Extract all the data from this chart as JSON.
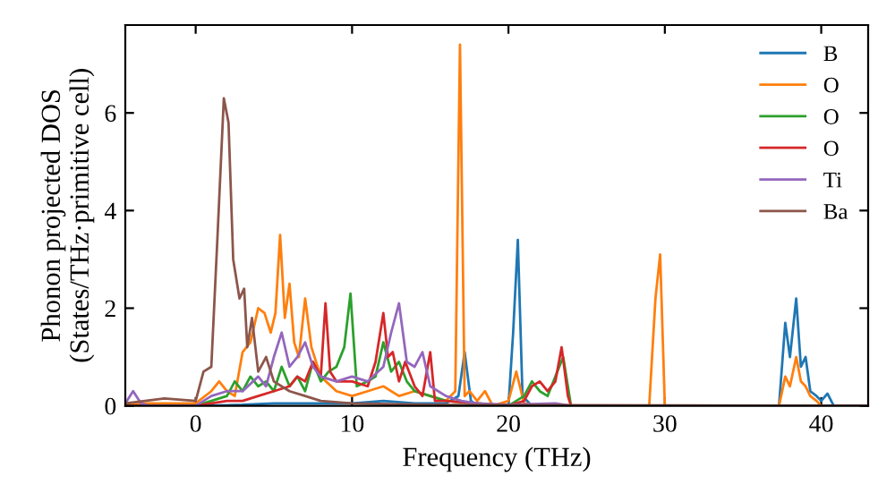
{
  "chart_data": {
    "type": "line",
    "xlabel": "Frequency (THz)",
    "ylabel": "Phonon projected DOS\n(States/THz·primitive cell)",
    "xlim": [
      -4.5,
      43
    ],
    "ylim": [
      0,
      7.8
    ],
    "xticks": [
      0,
      10,
      20,
      30,
      40
    ],
    "yticks": [
      0,
      2,
      4,
      6
    ],
    "grid": false,
    "legend": "top right",
    "line_style": "solid",
    "marker": "none",
    "series": [
      {
        "name": "B",
        "color": "#1f77b4",
        "x": [
          -4.5,
          0,
          3,
          5,
          8,
          10,
          12,
          14,
          16,
          16.8,
          17.2,
          17.6,
          18,
          20,
          20.3,
          20.6,
          20.9,
          21.5,
          30,
          37.3,
          37.7,
          38,
          38.4,
          38.7,
          39,
          39.3,
          39.7,
          40,
          40.4,
          40.8,
          43
        ],
        "values": [
          0,
          0,
          0.02,
          0.05,
          0.05,
          0.05,
          0.1,
          0.05,
          0.05,
          0.2,
          1.1,
          0.1,
          0.02,
          0,
          1.5,
          3.4,
          0.2,
          0,
          0,
          0,
          1.7,
          1.0,
          2.2,
          0.8,
          1.0,
          0.3,
          0.2,
          0.1,
          0.25,
          0,
          0
        ]
      },
      {
        "name": "O",
        "color": "#ff7f0e",
        "x": [
          -4.5,
          -2,
          0,
          1,
          1.5,
          2,
          2.5,
          3,
          3.5,
          4,
          4.4,
          4.8,
          5.1,
          5.4,
          5.7,
          6,
          6.3,
          6.6,
          7,
          7.4,
          8,
          9,
          10,
          11,
          12,
          13,
          14,
          15,
          16,
          16.6,
          16.9,
          17.2,
          17.5,
          18,
          18.5,
          19,
          20,
          20.5,
          21,
          22,
          25,
          29,
          29.4,
          29.7,
          30,
          37.3,
          37.7,
          38,
          38.4,
          38.7,
          39,
          39.3,
          39.7,
          40,
          43
        ],
        "values": [
          0.05,
          0.05,
          0.05,
          0.3,
          0.5,
          0.3,
          0.2,
          1.1,
          1.3,
          2.0,
          1.9,
          1.5,
          1.9,
          3.5,
          1.8,
          2.5,
          1.3,
          1.0,
          2.2,
          1.2,
          0.6,
          0.3,
          0.2,
          0.3,
          0.4,
          0.2,
          0.3,
          0.2,
          0.1,
          0.3,
          7.4,
          0.2,
          0.3,
          0.1,
          0.3,
          0,
          0.1,
          0.7,
          0.05,
          0,
          0,
          0,
          2.2,
          3.1,
          0,
          0,
          0.6,
          0.4,
          1.0,
          0.5,
          0.4,
          0.2,
          0.1,
          0,
          0
        ]
      },
      {
        "name": "O",
        "color": "#2ca02c",
        "x": [
          -4.5,
          0,
          1,
          2,
          2.5,
          3,
          3.5,
          4,
          4.5,
          5,
          5.5,
          6,
          6.5,
          7,
          7.5,
          8,
          8.5,
          9,
          9.5,
          9.9,
          10.3,
          11,
          11.5,
          12,
          12.5,
          13,
          13.5,
          14,
          15,
          16,
          18,
          20,
          21,
          21.5,
          22,
          22.5,
          23,
          23.5,
          24,
          43
        ],
        "values": [
          0,
          0,
          0.1,
          0.2,
          0.5,
          0.3,
          0.6,
          0.4,
          0.5,
          0.3,
          0.8,
          0.4,
          0.6,
          0.3,
          0.9,
          0.5,
          0.7,
          0.8,
          1.2,
          2.3,
          0.4,
          0.5,
          0.6,
          1.3,
          0.7,
          0.9,
          0.5,
          0.3,
          0.2,
          0.1,
          0.05,
          0,
          0.2,
          0.5,
          0.3,
          0.2,
          0.6,
          1.0,
          0,
          0
        ]
      },
      {
        "name": "O",
        "color": "#d62728",
        "x": [
          -4.5,
          0,
          2,
          3,
          4,
          5,
          6,
          6.5,
          7,
          7.5,
          8,
          8.3,
          8.6,
          9,
          10,
          11,
          11.5,
          12,
          12.3,
          12.6,
          13,
          13.4,
          14,
          14.5,
          15,
          15.3,
          16,
          18,
          20,
          21,
          21.5,
          22,
          22.5,
          23,
          23.4,
          23.8,
          24,
          43
        ],
        "values": [
          0,
          0,
          0.1,
          0.1,
          0.2,
          0.3,
          0.4,
          0.6,
          0.5,
          0.9,
          0.6,
          2.1,
          0.7,
          0.5,
          0.5,
          0.4,
          0.9,
          1.9,
          1.0,
          1.1,
          0.5,
          0.9,
          0.4,
          0.2,
          1.1,
          0.1,
          0.1,
          0.05,
          0,
          0.1,
          0.4,
          0.5,
          0.3,
          0.5,
          1.2,
          0.2,
          0,
          0
        ]
      },
      {
        "name": "Ti",
        "color": "#9467bd",
        "x": [
          -4.5,
          -4,
          -3.5,
          -3,
          0,
          1,
          2,
          3,
          4,
          4.5,
          5,
          5.5,
          6,
          6.5,
          7,
          7.5,
          8,
          9,
          10,
          11,
          12,
          12.5,
          13,
          13.5,
          14,
          14.5,
          15,
          16,
          17,
          18,
          20,
          23,
          24,
          43
        ],
        "values": [
          0.05,
          0.3,
          0.05,
          0,
          0,
          0.2,
          0.3,
          0.3,
          0.6,
          0.4,
          1.0,
          1.5,
          0.8,
          1.0,
          1.3,
          0.8,
          0.6,
          0.5,
          0.6,
          0.5,
          0.8,
          1.5,
          2.1,
          0.9,
          0.8,
          1.1,
          0.4,
          0.2,
          0.1,
          0.05,
          0.02,
          0.05,
          0,
          0
        ]
      },
      {
        "name": "Ba",
        "color": "#8c564b",
        "x": [
          -4.5,
          -2,
          0,
          0.5,
          1,
          1.4,
          1.8,
          2.1,
          2.4,
          2.8,
          3.1,
          3.3,
          3.6,
          4,
          4.5,
          5,
          6,
          7,
          8,
          10,
          15,
          43
        ],
        "values": [
          0.05,
          0.15,
          0.1,
          0.7,
          0.8,
          3.5,
          6.3,
          5.8,
          3.0,
          2.2,
          2.4,
          1.2,
          1.8,
          0.7,
          1.0,
          0.5,
          0.3,
          0.2,
          0.1,
          0.05,
          0.02,
          0
        ]
      }
    ]
  }
}
